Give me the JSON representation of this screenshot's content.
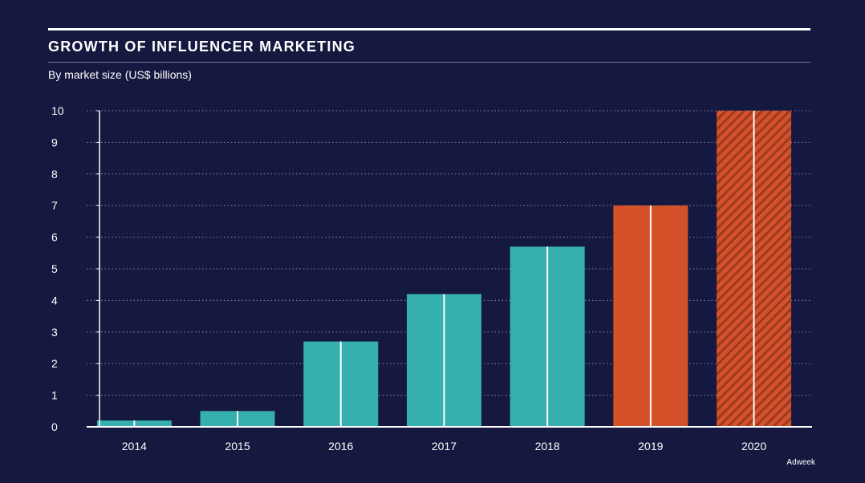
{
  "header": {
    "title": "GROWTH OF INFLUENCER MARKETING",
    "subtitle": "By market size (US$ billions)",
    "source": "Adweek"
  },
  "colors": {
    "background": "#15183f",
    "actual": "#36b0ae",
    "projected": "#d4512a",
    "hatch": "#9b3a20"
  },
  "chart_data": {
    "type": "bar",
    "title": "GROWTH OF INFLUENCER MARKETING",
    "subtitle": "By market size (US$ billions)",
    "xlabel": "",
    "ylabel": "",
    "categories": [
      "2014",
      "2015",
      "2016",
      "2017",
      "2018",
      "2019",
      "2020"
    ],
    "values": [
      0.2,
      0.5,
      2.7,
      4.2,
      5.7,
      7.0,
      10.0
    ],
    "bar_styles": [
      "solid-teal",
      "solid-teal",
      "solid-teal",
      "solid-teal",
      "solid-teal",
      "solid-orange",
      "hatched-orange"
    ],
    "ylim": [
      0,
      10
    ],
    "yticks": [
      0,
      1,
      2,
      3,
      4,
      5,
      6,
      7,
      8,
      9,
      10
    ],
    "grid": "dotted horizontal",
    "legend": "none"
  }
}
